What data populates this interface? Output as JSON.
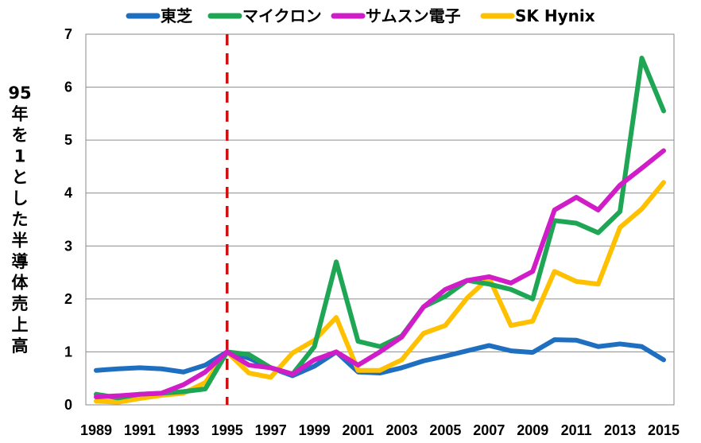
{
  "chart_data": {
    "type": "line",
    "title": "",
    "xlabel": "",
    "ylabel": "95年を1とした半導体売上高",
    "ylabel_lines": [
      "95",
      "年",
      "を",
      "1",
      "と",
      "し",
      "た",
      "半",
      "導",
      "体",
      "売",
      "上",
      "高"
    ],
    "ylim": [
      0,
      7
    ],
    "y_ticks": [
      "0",
      "1",
      "2",
      "3",
      "4",
      "5",
      "6",
      "7"
    ],
    "x": [
      1989,
      1990,
      1991,
      1992,
      1993,
      1994,
      1995,
      1996,
      1997,
      1998,
      1999,
      2000,
      2001,
      2002,
      2003,
      2004,
      2005,
      2006,
      2007,
      2008,
      2009,
      2010,
      2011,
      2012,
      2013,
      2014,
      2015
    ],
    "x_ticks": [
      "1989",
      "1991",
      "1993",
      "1995",
      "1997",
      "1999",
      "2001",
      "2003",
      "2005",
      "2007",
      "2009",
      "2011",
      "2013",
      "2015"
    ],
    "grid": true,
    "legend_position": "top",
    "reference_line": {
      "x": 1995,
      "color": "#cc1111",
      "style": "dashed"
    },
    "series": [
      {
        "name": "東芝",
        "color": "#1f6fc1",
        "values": [
          0.65,
          0.68,
          0.7,
          0.68,
          0.62,
          0.75,
          1.0,
          0.88,
          0.7,
          0.55,
          0.73,
          1.0,
          0.62,
          0.6,
          0.7,
          0.83,
          0.92,
          1.02,
          1.12,
          1.02,
          0.99,
          1.23,
          1.22,
          1.1,
          1.15,
          1.1,
          0.85
        ]
      },
      {
        "name": "マイクロン",
        "color": "#1ea654",
        "values": [
          0.2,
          0.13,
          0.2,
          0.22,
          0.25,
          0.3,
          1.0,
          0.95,
          0.7,
          0.58,
          1.1,
          2.7,
          1.2,
          1.1,
          1.3,
          1.85,
          2.05,
          2.35,
          2.28,
          2.18,
          2.0,
          3.48,
          3.43,
          3.25,
          3.65,
          6.55,
          5.55
        ]
      },
      {
        "name": "サムスン電子",
        "color": "#d11dc8",
        "values": [
          0.15,
          0.17,
          0.2,
          0.22,
          0.38,
          0.62,
          1.0,
          0.75,
          0.7,
          0.58,
          0.85,
          1.0,
          0.75,
          1.0,
          1.28,
          1.85,
          2.18,
          2.35,
          2.42,
          2.3,
          2.52,
          3.68,
          3.92,
          3.68,
          4.15,
          4.47,
          4.8
        ]
      },
      {
        "name": "SK Hynix",
        "color": "#ffc000",
        "values": [
          0.07,
          0.05,
          0.12,
          0.18,
          0.22,
          0.42,
          1.0,
          0.6,
          0.52,
          0.98,
          1.22,
          1.65,
          0.65,
          0.65,
          0.85,
          1.35,
          1.5,
          2.02,
          2.4,
          1.5,
          1.58,
          2.52,
          2.33,
          2.28,
          3.35,
          3.7,
          4.2
        ]
      }
    ]
  }
}
